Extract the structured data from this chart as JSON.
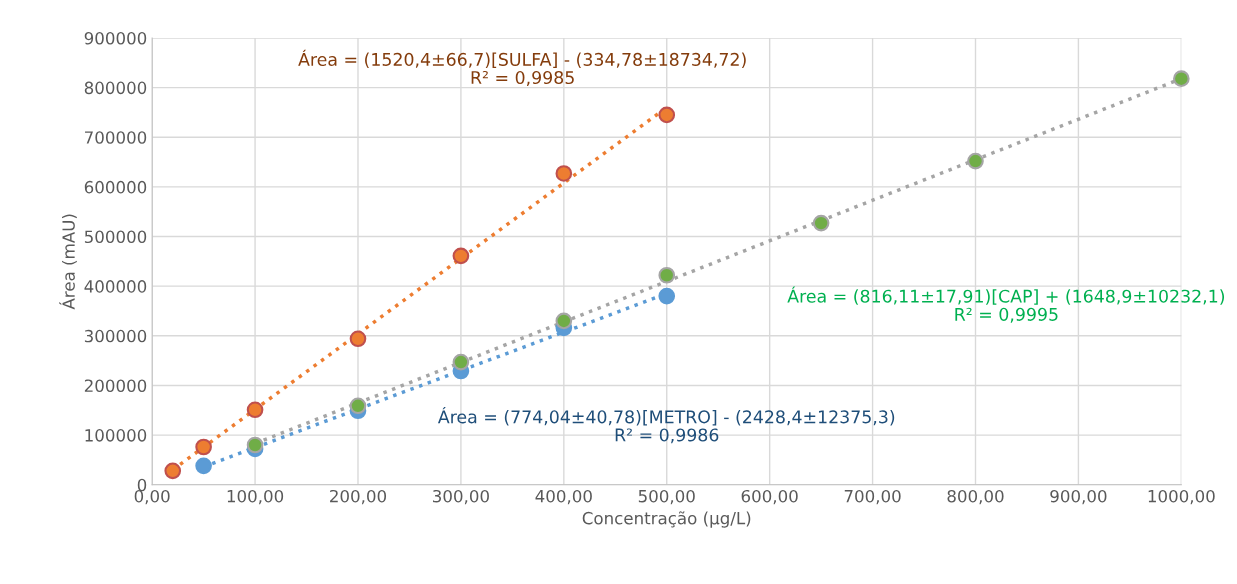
{
  "chart_data": {
    "type": "scatter",
    "xlabel": "Concentração (µg/L)",
    "ylabel": "Área (mAU)",
    "annotations": [
      "Área = (1520,4±66,7)[SULFA] - (334,78±18734,72)\nR² = 0,9985",
      "Área = (774,04±40,78)[METRO] - (2428,4±12375,3)\nR² = 0,9986",
      "Área = (816,11±17,91)[CAP] + (1648,9±10232,1)\nR² = 0,9995"
    ],
    "series": [
      {
        "type": "line",
        "line_style": "dotted",
        "marker": "none",
        "color": "#ed7d31",
        "x": [
          20,
          500
        ],
        "values": [
          30000,
          760000
        ]
      },
      {
        "type": "line",
        "line_style": "dotted",
        "marker": "none",
        "color": "#5b9bd5",
        "x": [
          50,
          500
        ],
        "values": [
          36000,
          385000
        ]
      },
      {
        "type": "line",
        "line_style": "dotted",
        "marker": "none",
        "color": "#a5a5a5",
        "x": [
          100,
          1000
        ],
        "values": [
          83000,
          818000
        ]
      },
      {
        "marker": "circle",
        "color": "#ed7d31",
        "x": [
          20,
          50,
          100,
          200,
          300,
          400,
          500
        ],
        "values": [
          28000,
          76000,
          151000,
          294000,
          461000,
          627000,
          745000
        ]
      },
      {
        "marker": "circle",
        "color": "#5b9bd5",
        "x": [
          50,
          100,
          200,
          300,
          400,
          500
        ],
        "values": [
          38000,
          72000,
          149000,
          229000,
          316000,
          380000
        ]
      },
      {
        "marker": "circle",
        "color": "#70ad47",
        "x": [
          100,
          200,
          300,
          400,
          500,
          650,
          800,
          1000
        ],
        "values": [
          80000,
          159000,
          247000,
          330000,
          422000,
          527000,
          652000,
          818000
        ]
      }
    ],
    "xlim": [
      0,
      1000
    ],
    "ylim": [
      0,
      900000
    ],
    "xticks": [
      {
        "value": 0,
        "label": "0,00"
      },
      {
        "value": 100,
        "label": "100,00"
      },
      {
        "value": 200,
        "label": "200,00"
      },
      {
        "value": 300,
        "label": "300,00"
      },
      {
        "value": 400,
        "label": "400,00"
      },
      {
        "value": 500,
        "label": "500,00"
      },
      {
        "value": 600,
        "label": "600,00"
      },
      {
        "value": 700,
        "label": "700,00"
      },
      {
        "value": 800,
        "label": "800,00"
      },
      {
        "value": 900,
        "label": "900,00"
      },
      {
        "value": 1000,
        "label": "1000,00"
      }
    ],
    "yticks": [
      0,
      100000,
      200000,
      300000,
      400000,
      500000,
      600000,
      700000,
      800000,
      900000
    ],
    "grid": true,
    "legend": false
  }
}
